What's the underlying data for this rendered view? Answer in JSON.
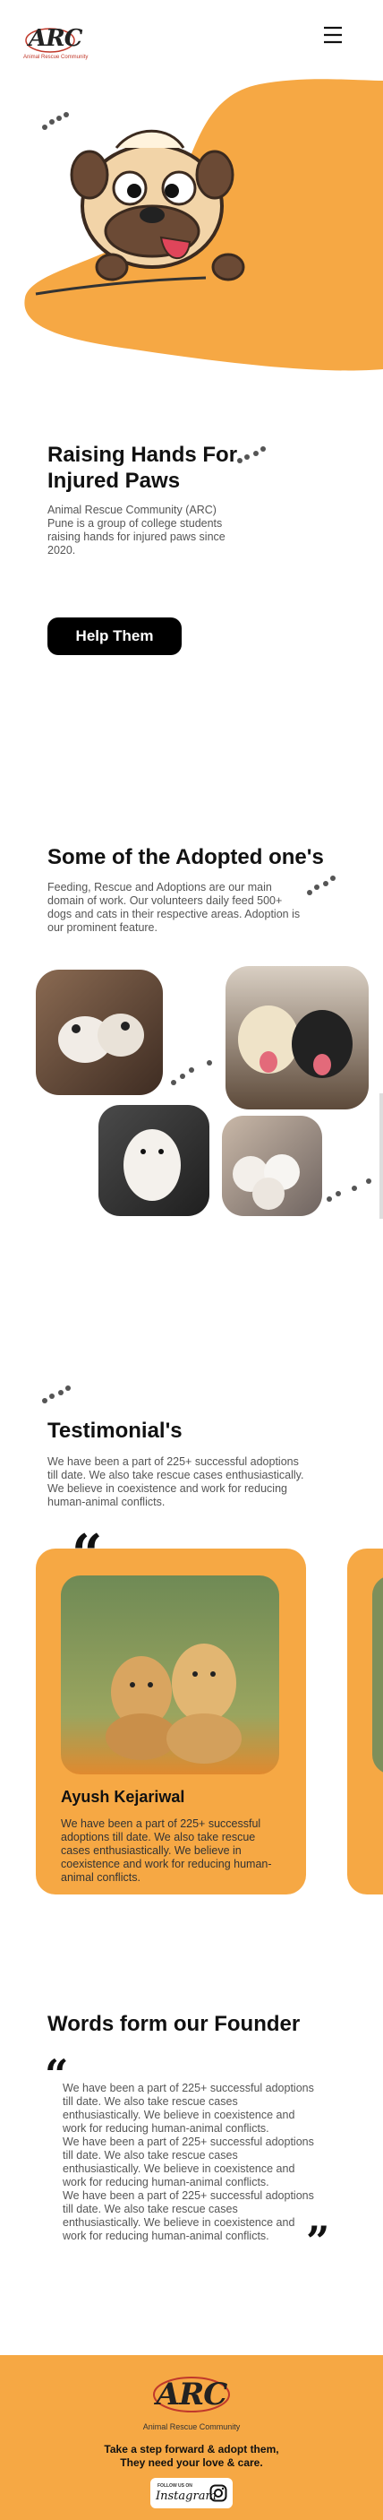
{
  "header": {
    "logo": "ARC",
    "logo_subtitle": "Animal Rescue Community"
  },
  "hero": {
    "title": "Raising Hands For Injured Paws",
    "text": "Animal Rescue Community (ARC) Pune is a group of college students raising hands for injured paws since 2020.",
    "button": "Help Them"
  },
  "adopted": {
    "title": "Some of the Adopted one's",
    "text": "Feeding, Rescue and Adoptions are our main domain of work. Our volunteers daily feed 500+ dogs and cats in their respective areas. Adoption is our prominent feature."
  },
  "testimonials": {
    "title": "Testimonial's",
    "text": "We have been a part of 225+ successful adoptions till date. We also take rescue cases enthusiastically. We believe in coexistence and work for reducing human-animal conflicts.",
    "cards": [
      {
        "name": "Ayush Kejariwal",
        "text": "We have been a part of 225+ successful adoptions till date. We also take rescue cases enthusiastically. We believe in coexistence and work for reducing human-animal conflicts."
      }
    ]
  },
  "founder": {
    "title": "Words form our Founder",
    "paragraphs": [
      "We have been a part of 225+ successful adoptions till date. We also take rescue cases enthusiastically. We believe in coexistence and work for reducing human-animal conflicts.",
      "We have been a part of 225+ successful adoptions till date. We also take rescue cases enthusiastically. We believe in coexistence and work for reducing human-animal conflicts.",
      "We have been a part of 225+ successful adoptions till date. We also take rescue cases enthusiastically. We believe in coexistence and work for reducing human-animal conflicts."
    ]
  },
  "footer": {
    "logo": "ARC",
    "subtitle": "Animal Rescue Community",
    "tagline": [
      "Take a step forward & adopt them,",
      "They need your love & care."
    ],
    "follow": "FOLLOW US ON",
    "instagram": "Instagram"
  }
}
